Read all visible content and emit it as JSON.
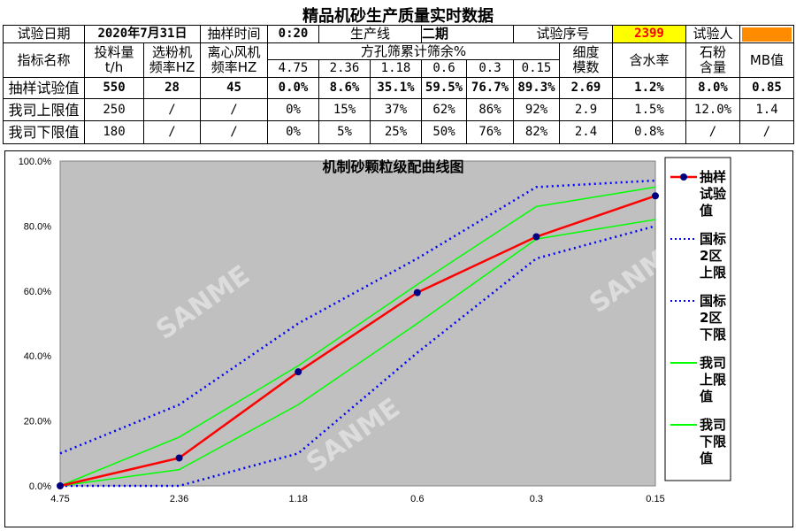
{
  "title": "精品机砂生产质量实时数据",
  "info_row": {
    "date_label": "试验日期",
    "date": "2020年7月31日",
    "time_label": "抽样时间",
    "time": "0:20",
    "line_label": "生产线",
    "line": "二期",
    "seq_label": "试验序号",
    "seq": "2399",
    "tester_label": "试验人",
    "tester_redacted_color": "#ff8c00"
  },
  "header": {
    "name": "指标名称",
    "feed": "投料量",
    "feed_unit": "t/h",
    "classifier": "选粉机",
    "classifier_unit": "频率HZ",
    "fan": "离心风机",
    "fan_unit": "频率HZ",
    "sieve_group": "方孔筛累计筛余%",
    "sieves": [
      "4.75",
      "2.36",
      "1.18",
      "0.6",
      "0.3",
      "0.15"
    ],
    "fineness": "细度",
    "fineness2": "模数",
    "moisture": "含水率",
    "powder": "石粉",
    "powder2": "含量",
    "mb": "MB值"
  },
  "rows": [
    {
      "label": "抽样试验值",
      "values": [
        "550",
        "28",
        "45",
        "0.0%",
        "8.6%",
        "35.1%",
        "59.5%",
        "76.7%",
        "89.3%",
        "2.69",
        "1.2%",
        "8.0%",
        "0.85"
      ]
    },
    {
      "label": "我司上限值",
      "values": [
        "250",
        "/",
        "/",
        "0%",
        "15%",
        "37%",
        "62%",
        "86%",
        "92%",
        "2.9",
        "1.5%",
        "12.0%",
        "1.4"
      ]
    },
    {
      "label": "我司下限值",
      "values": [
        "180",
        "/",
        "/",
        "0%",
        "5%",
        "25%",
        "50%",
        "76%",
        "82%",
        "2.4",
        "0.8%",
        "/",
        "/"
      ]
    }
  ],
  "chart_data": {
    "type": "line",
    "title": "机制砂颗粒级配曲线图",
    "categories": [
      "4.75",
      "2.36",
      "1.18",
      "0.6",
      "0.3",
      "0.15"
    ],
    "ylim": [
      0,
      100
    ],
    "yticks": [
      "0.0%",
      "20.0%",
      "40.0%",
      "60.0%",
      "80.0%",
      "100.0%"
    ],
    "grid": false,
    "legend": "right",
    "plot_bg": "#c0c0c0",
    "watermark": "SANME",
    "series": [
      {
        "name": "抽样试验值",
        "values": [
          0,
          8.6,
          35.1,
          59.5,
          76.7,
          89.3
        ],
        "color": "#ff0000",
        "style": "solid-marker"
      },
      {
        "name": "国标2区上限",
        "values": [
          10,
          25,
          50,
          70,
          92,
          94
        ],
        "color": "#0000ff",
        "style": "dotted"
      },
      {
        "name": "国标2区下限",
        "values": [
          0,
          0,
          10,
          41,
          70,
          80
        ],
        "color": "#0000ff",
        "style": "dotted"
      },
      {
        "name": "我司上限值",
        "values": [
          0,
          15,
          37,
          62,
          86,
          92
        ],
        "color": "#00ff00",
        "style": "solid"
      },
      {
        "name": "我司下限值",
        "values": [
          0,
          5,
          25,
          50,
          76,
          82
        ],
        "color": "#00ff00",
        "style": "solid"
      }
    ]
  }
}
